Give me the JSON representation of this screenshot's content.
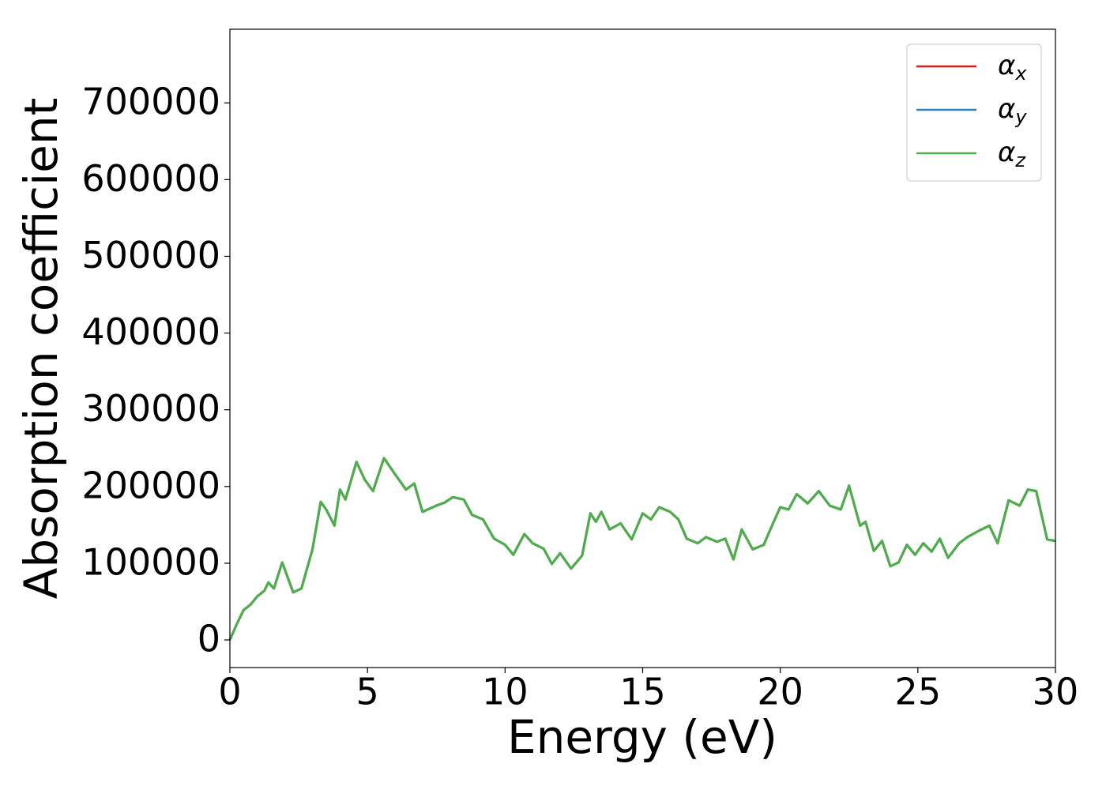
{
  "chart_data": {
    "type": "line",
    "xlabel": "Energy (eV)",
    "ylabel": "Absorption coefficient",
    "x": [
      0,
      0.25,
      0.5,
      0.75,
      1.0,
      1.25,
      1.4,
      1.6,
      1.9,
      2.3,
      2.6,
      3.0,
      3.3,
      3.5,
      3.8,
      4.0,
      4.2,
      4.6,
      4.9,
      5.2,
      5.6,
      6.0,
      6.4,
      6.7,
      7.0,
      7.5,
      7.8,
      8.1,
      8.5,
      8.8,
      9.2,
      9.6,
      10.0,
      10.3,
      10.7,
      11.0,
      11.4,
      11.7,
      12.0,
      12.4,
      12.8,
      13.1,
      13.3,
      13.5,
      13.8,
      14.2,
      14.6,
      15.0,
      15.3,
      15.6,
      16.0,
      16.3,
      16.6,
      17.0,
      17.3,
      17.7,
      18.0,
      18.3,
      18.6,
      19.0,
      19.4,
      19.7,
      20.0,
      20.3,
      20.6,
      21.0,
      21.4,
      21.8,
      22.2,
      22.5,
      22.9,
      23.1,
      23.4,
      23.7,
      24.0,
      24.3,
      24.6,
      24.9,
      25.2,
      25.5,
      25.8,
      26.1,
      26.5,
      26.8,
      27.2,
      27.6,
      27.9,
      28.3,
      28.7,
      29.0,
      29.3,
      29.7,
      30.0
    ],
    "series": [
      {
        "name": "αx",
        "color": "#e41a1c",
        "values": [
          0,
          20600,
          39000,
          46000,
          57000,
          64000,
          75000,
          67000,
          101000,
          62000,
          67000,
          118000,
          180000,
          170000,
          149000,
          196000,
          183000,
          232000,
          209000,
          194000,
          237000,
          216000,
          196000,
          204000,
          167000,
          175000,
          179000,
          186000,
          183000,
          163000,
          157000,
          132000,
          124000,
          111000,
          138000,
          126000,
          119000,
          99000,
          113000,
          93000,
          110000,
          165000,
          154000,
          167000,
          144000,
          152000,
          131000,
          165000,
          157000,
          173000,
          167000,
          157000,
          132000,
          126000,
          134000,
          128000,
          132000,
          105000,
          144000,
          118000,
          124000,
          149000,
          173000,
          170000,
          190000,
          178000,
          194000,
          175000,
          170000,
          201000,
          149000,
          154000,
          116000,
          129000,
          96000,
          101000,
          124000,
          111000,
          126000,
          115000,
          132000,
          107000,
          126000,
          134000,
          142000,
          149000,
          126000,
          182000,
          175000,
          196000,
          194000,
          131000,
          129000
        ]
      },
      {
        "name": "αy",
        "color": "#377eb8",
        "values": [
          0,
          20600,
          39000,
          46000,
          57000,
          64000,
          75000,
          67000,
          101000,
          62000,
          67000,
          118000,
          180000,
          170000,
          149000,
          196000,
          183000,
          232000,
          209000,
          194000,
          237000,
          216000,
          196000,
          204000,
          167000,
          175000,
          179000,
          186000,
          183000,
          163000,
          157000,
          132000,
          124000,
          111000,
          138000,
          126000,
          119000,
          99000,
          113000,
          93000,
          110000,
          165000,
          154000,
          167000,
          144000,
          152000,
          131000,
          165000,
          157000,
          173000,
          167000,
          157000,
          132000,
          126000,
          134000,
          128000,
          132000,
          105000,
          144000,
          118000,
          124000,
          149000,
          173000,
          170000,
          190000,
          178000,
          194000,
          175000,
          170000,
          201000,
          149000,
          154000,
          116000,
          129000,
          96000,
          101000,
          124000,
          111000,
          126000,
          115000,
          132000,
          107000,
          126000,
          134000,
          142000,
          149000,
          126000,
          182000,
          175000,
          196000,
          194000,
          131000,
          129000
        ]
      },
      {
        "name": "αz",
        "color": "#4daf4a",
        "values": [
          0,
          20600,
          39000,
          46000,
          57000,
          64000,
          75000,
          67000,
          101000,
          62000,
          67000,
          118000,
          180000,
          170000,
          149000,
          196000,
          183000,
          232000,
          209000,
          194000,
          237000,
          216000,
          196000,
          204000,
          167000,
          175000,
          179000,
          186000,
          183000,
          163000,
          157000,
          132000,
          124000,
          111000,
          138000,
          126000,
          119000,
          99000,
          113000,
          93000,
          110000,
          165000,
          154000,
          167000,
          144000,
          152000,
          131000,
          165000,
          157000,
          173000,
          167000,
          157000,
          132000,
          126000,
          134000,
          128000,
          132000,
          105000,
          144000,
          118000,
          124000,
          149000,
          173000,
          170000,
          190000,
          178000,
          194000,
          175000,
          170000,
          201000,
          149000,
          154000,
          116000,
          129000,
          96000,
          101000,
          124000,
          111000,
          126000,
          115000,
          132000,
          107000,
          126000,
          134000,
          142000,
          149000,
          126000,
          182000,
          175000,
          196000,
          194000,
          131000,
          129000
        ]
      }
    ],
    "xlim": [
      0,
      30
    ],
    "xticks": [
      0,
      5,
      10,
      15,
      20,
      25,
      30
    ],
    "ylim": [
      -36000,
      796000
    ],
    "yticks": [
      0,
      100000,
      200000,
      300000,
      400000,
      500000,
      600000,
      700000
    ],
    "grid": false,
    "legend": "upper right"
  }
}
